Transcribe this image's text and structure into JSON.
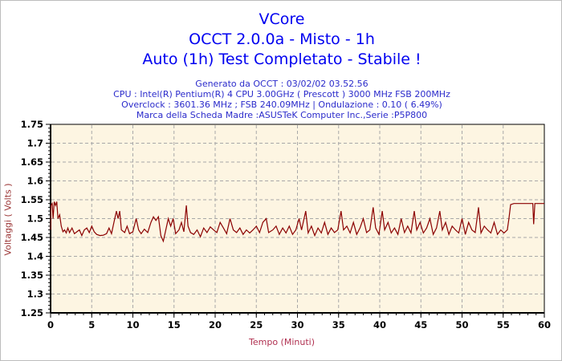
{
  "header": {
    "title": "VCore",
    "subtitle1": "OCCT 2.0.0a - Misto - 1h",
    "subtitle2": "Auto (1h) Test Completato - Stabile !",
    "info_lines": [
      "Generato da OCCT : 03/02/02 03.52.56",
      "CPU : Intel(R) Pentium(R) 4 CPU 3.00GHz ( Prescott ) 3000 MHz FSB 200MHz",
      "Overclock : 3601.36 MHz ; FSB 240.09MHz | Ondulazione : 0.10 ( 6.49%)",
      "Marca della Scheda Madre :ASUSTeK Computer Inc.,Serie :P5P800"
    ]
  },
  "colors": {
    "title_blue": "#0000f0",
    "info_blue": "#2b2bcb",
    "plot_bg": "#fdf5e2",
    "grid": "#a8a8a8",
    "axis": "#000000",
    "line": "#8b0000",
    "ylabel_color": "#9b3535",
    "xlabel_color": "#b03050",
    "tick_label": "#000000"
  },
  "chart_data": {
    "type": "line",
    "title": "VCore",
    "xlabel": "Tempo (Minuti)",
    "ylabel": "Voltaggi ( Volts )",
    "xlim": [
      0,
      60
    ],
    "ylim": [
      1.25,
      1.75
    ],
    "xticks": [
      0,
      5,
      10,
      15,
      20,
      25,
      30,
      35,
      40,
      45,
      50,
      55,
      60
    ],
    "xtick_labels": [
      "0",
      "5",
      "10",
      "15",
      "20",
      "25",
      "30",
      "35",
      "40",
      "45",
      "50",
      "55",
      "60"
    ],
    "yticks": [
      1.25,
      1.3,
      1.35,
      1.4,
      1.45,
      1.5,
      1.55,
      1.6,
      1.65,
      1.7,
      1.75
    ],
    "ytick_labels": [
      "1.25",
      "1.3",
      "1.35",
      "1.4",
      "1.45",
      "1.5",
      "1.55",
      "1.6",
      "1.65",
      "1.7",
      "1.75"
    ],
    "x_minor_step": 1,
    "y_minor_step": 0.01,
    "grid": true,
    "grid_style": "dashed",
    "legend_position": "none",
    "series": [
      {
        "name": "VCore",
        "color": "#8b0000",
        "points": [
          [
            0,
            1.47
          ],
          [
            0.05,
            1.535
          ],
          [
            0.2,
            1.54
          ],
          [
            0.3,
            1.5
          ],
          [
            0.45,
            1.545
          ],
          [
            0.6,
            1.535
          ],
          [
            0.75,
            1.545
          ],
          [
            0.9,
            1.5
          ],
          [
            1.1,
            1.51
          ],
          [
            1.3,
            1.48
          ],
          [
            1.5,
            1.465
          ],
          [
            1.7,
            1.47
          ],
          [
            1.9,
            1.462
          ],
          [
            2.1,
            1.475
          ],
          [
            2.3,
            1.463
          ],
          [
            2.6,
            1.475
          ],
          [
            2.9,
            1.46
          ],
          [
            3.2,
            1.465
          ],
          [
            3.5,
            1.47
          ],
          [
            3.8,
            1.455
          ],
          [
            4.1,
            1.47
          ],
          [
            4.4,
            1.475
          ],
          [
            4.7,
            1.463
          ],
          [
            5,
            1.48
          ],
          [
            5.3,
            1.465
          ],
          [
            5.6,
            1.458
          ],
          [
            6,
            1.455
          ],
          [
            6.4,
            1.456
          ],
          [
            6.8,
            1.46
          ],
          [
            7.1,
            1.475
          ],
          [
            7.4,
            1.46
          ],
          [
            7.7,
            1.49
          ],
          [
            8,
            1.52
          ],
          [
            8.2,
            1.5
          ],
          [
            8.4,
            1.52
          ],
          [
            8.6,
            1.47
          ],
          [
            9,
            1.463
          ],
          [
            9.3,
            1.48
          ],
          [
            9.6,
            1.46
          ],
          [
            10,
            1.465
          ],
          [
            10.4,
            1.5
          ],
          [
            10.7,
            1.47
          ],
          [
            11,
            1.46
          ],
          [
            11.4,
            1.472
          ],
          [
            11.8,
            1.463
          ],
          [
            12.2,
            1.49
          ],
          [
            12.5,
            1.505
          ],
          [
            12.8,
            1.495
          ],
          [
            13.1,
            1.505
          ],
          [
            13.4,
            1.455
          ],
          [
            13.7,
            1.44
          ],
          [
            13.9,
            1.46
          ],
          [
            14.3,
            1.5
          ],
          [
            14.6,
            1.48
          ],
          [
            14.9,
            1.5
          ],
          [
            15.2,
            1.46
          ],
          [
            15.6,
            1.47
          ],
          [
            15.9,
            1.49
          ],
          [
            16.2,
            1.465
          ],
          [
            16.5,
            1.535
          ],
          [
            16.7,
            1.48
          ],
          [
            17,
            1.463
          ],
          [
            17.4,
            1.458
          ],
          [
            17.8,
            1.47
          ],
          [
            18.2,
            1.452
          ],
          [
            18.6,
            1.475
          ],
          [
            19,
            1.463
          ],
          [
            19.4,
            1.478
          ],
          [
            19.8,
            1.47
          ],
          [
            20.2,
            1.463
          ],
          [
            20.6,
            1.49
          ],
          [
            21,
            1.475
          ],
          [
            21.4,
            1.46
          ],
          [
            21.8,
            1.5
          ],
          [
            22.2,
            1.47
          ],
          [
            22.6,
            1.463
          ],
          [
            23,
            1.475
          ],
          [
            23.4,
            1.458
          ],
          [
            23.8,
            1.47
          ],
          [
            24.2,
            1.462
          ],
          [
            24.6,
            1.47
          ],
          [
            25,
            1.48
          ],
          [
            25.4,
            1.463
          ],
          [
            25.8,
            1.49
          ],
          [
            26.2,
            1.5
          ],
          [
            26.5,
            1.463
          ],
          [
            27,
            1.47
          ],
          [
            27.4,
            1.48
          ],
          [
            27.8,
            1.458
          ],
          [
            28.2,
            1.475
          ],
          [
            28.6,
            1.462
          ],
          [
            29,
            1.48
          ],
          [
            29.4,
            1.458
          ],
          [
            29.8,
            1.47
          ],
          [
            30.2,
            1.5
          ],
          [
            30.5,
            1.47
          ],
          [
            31,
            1.52
          ],
          [
            31.3,
            1.462
          ],
          [
            31.7,
            1.48
          ],
          [
            32.1,
            1.455
          ],
          [
            32.5,
            1.475
          ],
          [
            32.9,
            1.462
          ],
          [
            33.3,
            1.49
          ],
          [
            33.7,
            1.458
          ],
          [
            34.1,
            1.475
          ],
          [
            34.5,
            1.463
          ],
          [
            34.9,
            1.47
          ],
          [
            35.3,
            1.52
          ],
          [
            35.6,
            1.47
          ],
          [
            36,
            1.48
          ],
          [
            36.4,
            1.462
          ],
          [
            36.8,
            1.49
          ],
          [
            37.2,
            1.458
          ],
          [
            37.6,
            1.475
          ],
          [
            38,
            1.5
          ],
          [
            38.4,
            1.463
          ],
          [
            38.8,
            1.47
          ],
          [
            39.2,
            1.53
          ],
          [
            39.5,
            1.475
          ],
          [
            39.9,
            1.458
          ],
          [
            40.3,
            1.52
          ],
          [
            40.6,
            1.47
          ],
          [
            41,
            1.49
          ],
          [
            41.4,
            1.462
          ],
          [
            41.8,
            1.475
          ],
          [
            42.2,
            1.458
          ],
          [
            42.6,
            1.5
          ],
          [
            43,
            1.463
          ],
          [
            43.4,
            1.48
          ],
          [
            43.8,
            1.462
          ],
          [
            44.2,
            1.52
          ],
          [
            44.5,
            1.47
          ],
          [
            44.9,
            1.49
          ],
          [
            45.3,
            1.462
          ],
          [
            45.7,
            1.475
          ],
          [
            46.1,
            1.5
          ],
          [
            46.5,
            1.458
          ],
          [
            46.9,
            1.475
          ],
          [
            47.3,
            1.52
          ],
          [
            47.6,
            1.47
          ],
          [
            48,
            1.49
          ],
          [
            48.4,
            1.458
          ],
          [
            48.8,
            1.48
          ],
          [
            49.2,
            1.47
          ],
          [
            49.6,
            1.462
          ],
          [
            50,
            1.5
          ],
          [
            50.4,
            1.458
          ],
          [
            50.8,
            1.49
          ],
          [
            51.2,
            1.47
          ],
          [
            51.6,
            1.463
          ],
          [
            52,
            1.53
          ],
          [
            52.3,
            1.462
          ],
          [
            52.7,
            1.48
          ],
          [
            53.1,
            1.47
          ],
          [
            53.5,
            1.462
          ],
          [
            53.9,
            1.49
          ],
          [
            54.3,
            1.458
          ],
          [
            54.7,
            1.47
          ],
          [
            55.1,
            1.462
          ],
          [
            55.5,
            1.47
          ],
          [
            55.7,
            1.5
          ],
          [
            55.9,
            1.537
          ],
          [
            56.3,
            1.54
          ],
          [
            57,
            1.54
          ],
          [
            57.7,
            1.54
          ],
          [
            58.4,
            1.54
          ],
          [
            58.6,
            1.54
          ],
          [
            58.7,
            1.485
          ],
          [
            58.85,
            1.54
          ],
          [
            59.3,
            1.54
          ],
          [
            59.7,
            1.54
          ],
          [
            60,
            1.54
          ]
        ]
      }
    ]
  }
}
